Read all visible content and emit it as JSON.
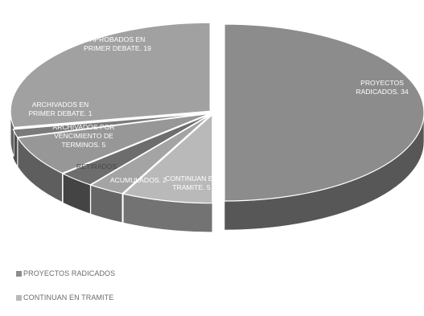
{
  "chart_data": {
    "type": "pie",
    "title": "",
    "style": "3d-exploded",
    "slices": [
      {
        "label": "PROYECTOS RADICADOS",
        "value": 34,
        "data_label": "PROYECTOS RADICADOS. 34",
        "color": "#8c8c8c"
      },
      {
        "label": "CONTINUAN EN TRAMITE",
        "value": 5,
        "data_label": "CONTINUAN EN TRAMITE. 5",
        "color": "#b9b9b9"
      },
      {
        "label": "ACUMULADOS",
        "value": 2,
        "data_label": "ACUMULADOS. 2",
        "color": "#a4a4a4"
      },
      {
        "label": "RETIRADOS",
        "value": 2,
        "data_label": "RETIRADOS. 2",
        "color": "#6d6d6d"
      },
      {
        "label": "ARCHIVADOS POR VENCIMIENTO DE TERMINOS",
        "value": 5,
        "data_label": "ARCHIVADOS POR VENCIMIENTO DE TERMINOS. 5",
        "color": "#979797"
      },
      {
        "label": "ARCHIVADOS EN PRIMER DEBATE",
        "value": 1,
        "data_label": "ARCHIVADOS EN PRIMER DEBATE. 1",
        "color": "#7a7a7a"
      },
      {
        "label": "APROBADOS EN PRIMER DEBATE",
        "value": 19,
        "data_label": "APROBADOS EN PRIMER DEBATE. 19",
        "color": "#a1a1a1"
      }
    ],
    "legend": {
      "position": "bottom-left",
      "entries": [
        {
          "label": "PROYECTOS RADICADOS",
          "color": "#8c8c8c"
        },
        {
          "label": "CONTINUAN EN TRAMITE",
          "color": "#b9b9b9"
        }
      ]
    }
  }
}
